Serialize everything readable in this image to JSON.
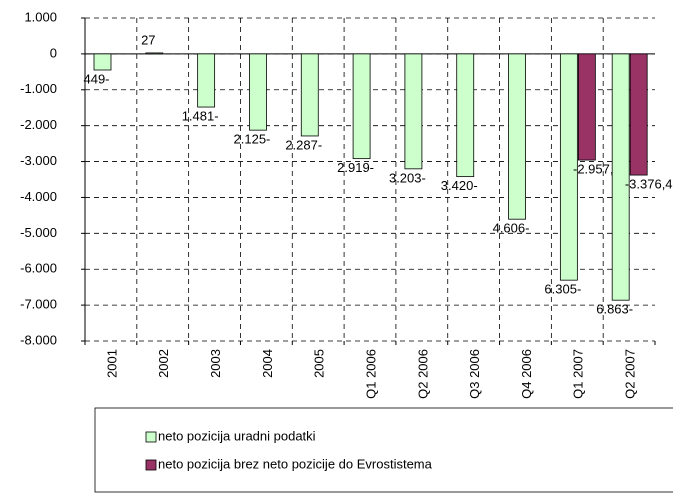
{
  "chart_data": {
    "type": "bar",
    "categories": [
      "2001",
      "2002",
      "2003",
      "2004",
      "2005",
      "Q1 2006",
      "Q2 2006",
      "Q3 2006",
      "Q4 2006",
      "Q1 2007",
      "Q2 2007"
    ],
    "series": [
      {
        "name": "neto pozicija uradni podatki",
        "color": "#ccffcc",
        "values": [
          -449,
          27,
          -1481,
          -2125,
          -2287,
          -2919,
          -3203,
          -3420,
          -4606,
          -6305,
          -6863
        ],
        "value_labels": [
          "449-",
          "27",
          "1.481-",
          "2.125-",
          "2.287-",
          "2.919-",
          "3.203-",
          "3.420-",
          "4.606-",
          "6.305-",
          "6.863-"
        ]
      },
      {
        "name": "neto pozicija brez neto pozicije do Evrostistema",
        "color": "#993366",
        "values": [
          null,
          null,
          null,
          null,
          null,
          null,
          null,
          null,
          null,
          -2957.8,
          -3376.4
        ],
        "value_labels": [
          null,
          null,
          null,
          null,
          null,
          null,
          null,
          null,
          null,
          "-2.957,8",
          "-3.376,4"
        ]
      }
    ],
    "ylim": [
      -8000,
      1000
    ],
    "yticks": [
      {
        "value": 1000,
        "label": "1.000"
      },
      0,
      {
        "value": -1000,
        "label": "-1.000"
      },
      {
        "value": -2000,
        "label": "-2.000"
      },
      {
        "value": -3000,
        "label": "-3.000"
      },
      {
        "value": -4000,
        "label": "-4.000"
      },
      {
        "value": -5000,
        "label": "-5.000"
      },
      {
        "value": -6000,
        "label": "-6.000"
      },
      {
        "value": -7000,
        "label": "-7.000"
      },
      {
        "value": -8000,
        "label": "-8.000"
      }
    ],
    "grid": true,
    "legend": "bottom"
  }
}
